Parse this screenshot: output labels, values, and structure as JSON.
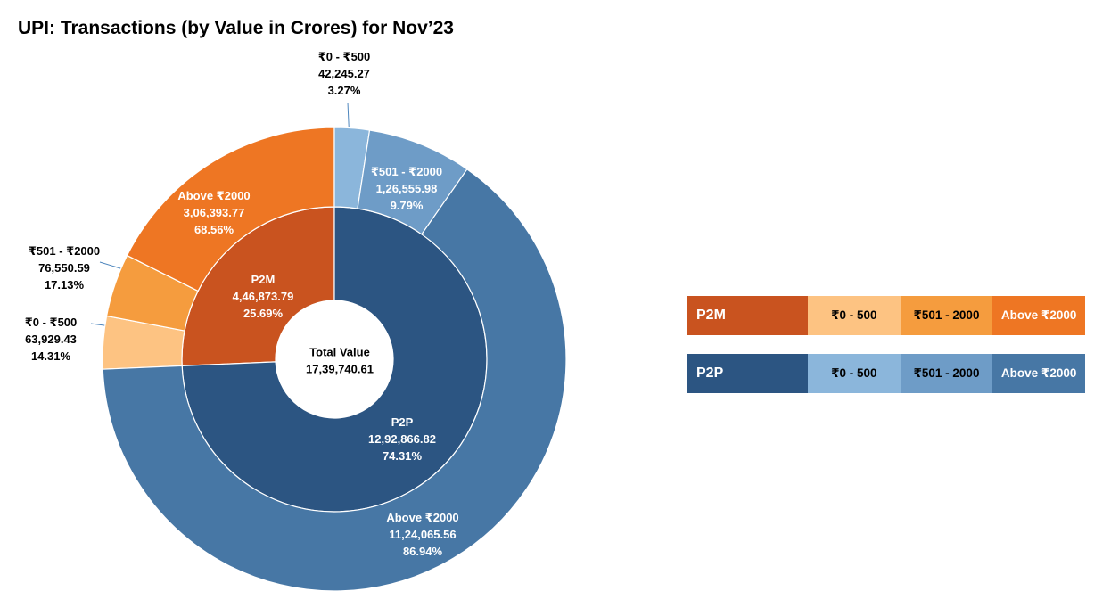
{
  "chart_data": {
    "type": "sunburst",
    "title": "UPI: Transactions (by Value in Crores) for Nov’23",
    "center": {
      "label": "Total Value",
      "value": "17,39,740.61",
      "total": 1739740.61
    },
    "inner": [
      {
        "name": "P2M",
        "value": 446873.79,
        "value_label": "4,46,873.79",
        "percent": "25.69%",
        "color": "#C9531F"
      },
      {
        "name": "P2P",
        "value": 1292866.82,
        "value_label": "12,92,866.82",
        "percent": "74.31%",
        "color": "#2C5582"
      }
    ],
    "outer": [
      {
        "parent": "P2M",
        "name": "₹0 - ₹500",
        "value": 63929.43,
        "value_label": "63,929.43",
        "percent": "14.31%",
        "color": "#FDC382"
      },
      {
        "parent": "P2M",
        "name": "₹501 - ₹2000",
        "value": 76550.59,
        "value_label": "76,550.59",
        "percent": "17.13%",
        "color": "#F59C3E"
      },
      {
        "parent": "P2M",
        "name": "Above ₹2000",
        "value": 306393.77,
        "value_label": "3,06,393.77",
        "percent": "68.56%",
        "color": "#EE7623"
      },
      {
        "parent": "P2P",
        "name": "₹0 - ₹500",
        "value": 42245.27,
        "value_label": "42,245.27",
        "percent": "3.27%",
        "color": "#8BB6DB"
      },
      {
        "parent": "P2P",
        "name": "₹501 - ₹2000",
        "value": 126555.98,
        "value_label": "1,26,555.98",
        "percent": "9.79%",
        "color": "#6E9CC7"
      },
      {
        "parent": "P2P",
        "name": "Above ₹2000",
        "value": 1124065.56,
        "value_label": "11,24,065.56",
        "percent": "86.94%",
        "color": "#4777A5"
      }
    ]
  },
  "legend": [
    {
      "group": "P2M",
      "color": "#C9531F",
      "items": [
        {
          "label": "₹0 - 500",
          "color": "#FDC382"
        },
        {
          "label": "₹501 - 2000",
          "color": "#F59C3E"
        },
        {
          "label": "Above ₹2000",
          "color": "#EE7623"
        }
      ]
    },
    {
      "group": "P2P",
      "color": "#2C5582",
      "items": [
        {
          "label": "₹0 - 500",
          "color": "#8BB6DB"
        },
        {
          "label": "₹501 - 2000",
          "color": "#6E9CC7"
        },
        {
          "label": "Above ₹2000",
          "color": "#4777A5"
        }
      ]
    }
  ]
}
